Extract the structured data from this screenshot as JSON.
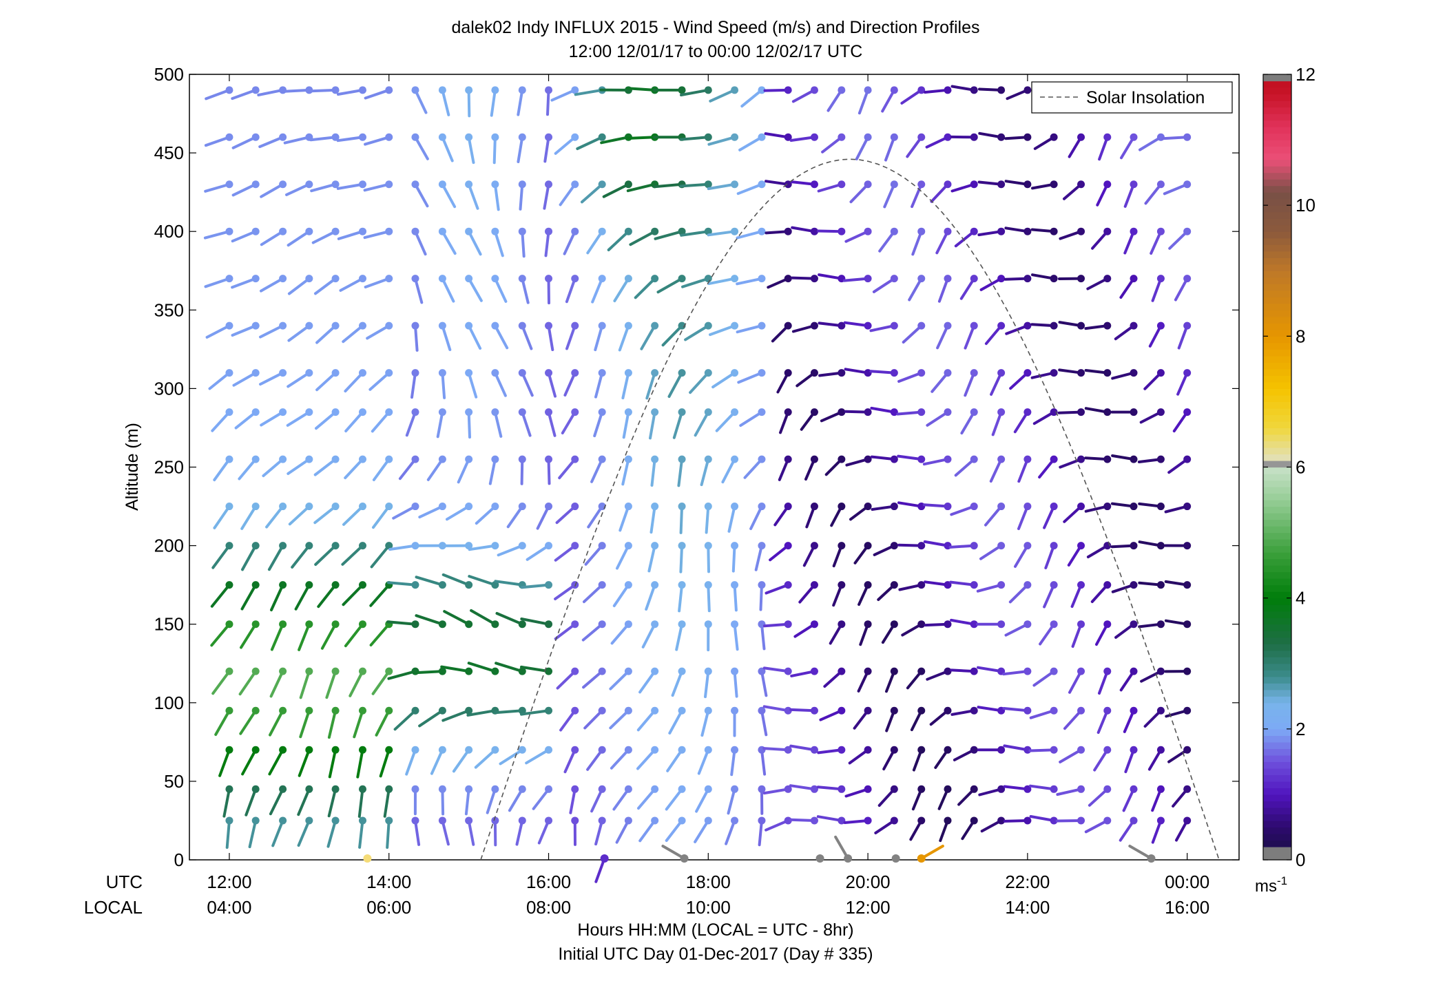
{
  "chart_data": {
    "type": "wind-barb-profile",
    "title": "dalek02 Indy INFLUX 2015 - Wind Speed (m/s) and Direction Profiles",
    "subtitle": "12:00 12/01/17 to 00:00 12/02/17  UTC",
    "ylabel": "Altitude (m)",
    "xlabel": "Hours HH:MM  (LOCAL = UTC - 8hr)",
    "xlabel2": "Initial UTC Day 01-Dec-2017 (Day # 335)",
    "row_label_utc": "UTC",
    "row_label_local": "LOCAL",
    "xlim_hours": [
      11.5,
      24.65
    ],
    "ylim": [
      0,
      500
    ],
    "y_ticks": [
      0,
      50,
      100,
      150,
      200,
      250,
      300,
      350,
      400,
      450,
      500
    ],
    "x_ticks_hours": [
      12,
      14,
      16,
      18,
      20,
      22,
      24
    ],
    "x_tick_labels_utc": [
      "12:00",
      "14:00",
      "16:00",
      "18:00",
      "20:00",
      "22:00",
      "00:00"
    ],
    "x_tick_labels_local": [
      "04:00",
      "06:00",
      "08:00",
      "10:00",
      "12:00",
      "14:00",
      "16:00"
    ],
    "legend": {
      "label": "Solar Insolation",
      "placement": "top-right"
    },
    "solar_curve": {
      "start_hour": 15.15,
      "end_hour": 24.4,
      "peak_altitude": 446
    },
    "colorbar": {
      "min": 0,
      "max": 12,
      "ticks": [
        0,
        2,
        4,
        6,
        8,
        10,
        12
      ],
      "unit_label": "ms",
      "unit_exponent": "-1"
    },
    "barb_hours": [
      12,
      12.33,
      12.67,
      13,
      13.33,
      13.67,
      14,
      14.33,
      14.67,
      15,
      15.33,
      15.67,
      16,
      16.33,
      16.67,
      17,
      17.33,
      17.67,
      18,
      18.33,
      18.67,
      19,
      19.33,
      19.67,
      20,
      20.33,
      20.67,
      21,
      21.33,
      21.67,
      22,
      22.33,
      22.67,
      23,
      23.33,
      23.67,
      24
    ],
    "barb_altitudes": [
      25,
      45,
      70,
      95,
      120,
      150,
      175,
      200,
      225,
      255,
      285,
      310,
      340,
      370,
      400,
      430,
      460,
      490
    ],
    "surface_points": [
      {
        "hour": 13.73,
        "speed": 6.2,
        "dir": 0
      },
      {
        "hour": 16.7,
        "speed": 1.2,
        "dir": 200
      },
      {
        "hour": 17.7,
        "speed": 6.0,
        "dir": 300
      },
      {
        "hour": 19.4,
        "speed": 6.0,
        "dir": 0
      },
      {
        "hour": 19.75,
        "speed": 6.0,
        "dir": 330
      },
      {
        "hour": 20.35,
        "speed": 6.0,
        "dir": 0
      },
      {
        "hour": 20.67,
        "speed": 8.0,
        "dir": 60
      },
      {
        "hour": 23.55,
        "speed": 6.0,
        "dir": 300
      }
    ],
    "note_values": "Each barb shows wind speed (color, m/s) and direction at a given hour and altitude."
  }
}
